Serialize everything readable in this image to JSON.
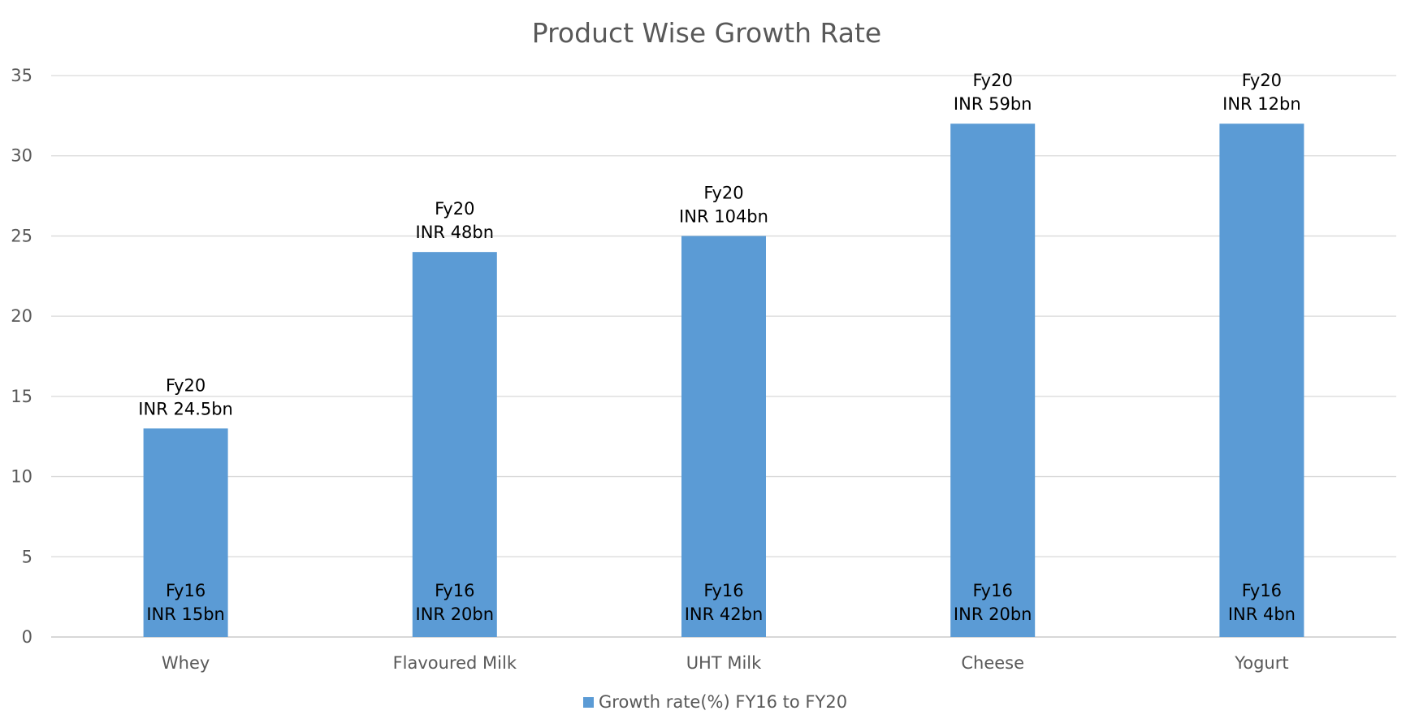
{
  "chart_data": {
    "type": "bar",
    "title": "Product Wise Growth Rate",
    "xlabel": "",
    "ylabel": "",
    "ylim": [
      0,
      35
    ],
    "yticks": [
      0,
      5,
      10,
      15,
      20,
      25,
      30,
      35
    ],
    "grid": true,
    "legend_position": "bottom",
    "categories": [
      "Whey",
      "Flavoured Milk",
      "UHT Milk",
      "Cheese",
      "Yogurt"
    ],
    "series": [
      {
        "name": "Growth rate(%) FY16 to FY20",
        "color": "#5B9BD5",
        "values": [
          13,
          24,
          25,
          32,
          32
        ]
      }
    ],
    "annotations_top": [
      [
        "Fy20",
        "INR 24.5bn"
      ],
      [
        "Fy20",
        "INR 48bn"
      ],
      [
        "Fy20",
        "INR 104bn"
      ],
      [
        "Fy20",
        "INR 59bn"
      ],
      [
        "Fy20",
        "INR 12bn"
      ]
    ],
    "annotations_bottom": [
      [
        "Fy16",
        "INR 15bn"
      ],
      [
        "Fy16",
        "INR 20bn"
      ],
      [
        "Fy16",
        "INR 42bn"
      ],
      [
        "Fy16",
        "INR 20bn"
      ],
      [
        "Fy16",
        "INR 4bn"
      ]
    ]
  }
}
